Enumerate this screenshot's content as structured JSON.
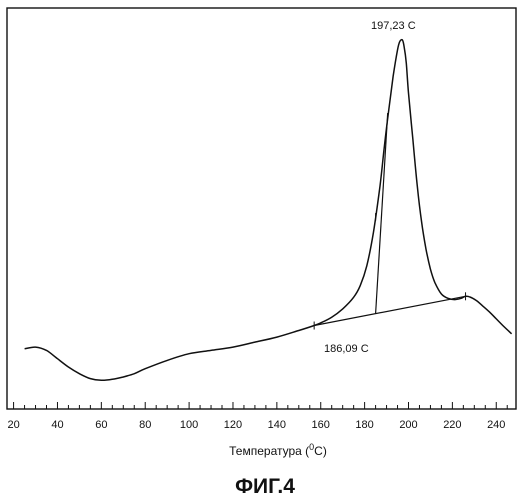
{
  "chart_data": {
    "type": "line",
    "title": "",
    "xlabel": "Температура (⁰C)",
    "xlabel_base": "Температура (",
    "xlabel_sup": "0",
    "xlabel_tail": "C)",
    "ylabel": "",
    "xlim": [
      17,
      249
    ],
    "xticks": [
      20,
      40,
      60,
      80,
      100,
      120,
      140,
      160,
      180,
      200,
      220,
      240
    ],
    "grid": false,
    "series": [
      {
        "x": [
          25,
          30,
          35,
          40,
          45,
          50,
          55,
          60,
          65,
          70,
          75,
          80,
          90,
          100,
          110,
          120,
          130,
          140,
          150,
          157,
          160,
          165,
          170,
          175,
          178,
          181,
          184,
          187,
          189,
          191,
          193,
          195,
          196,
          197.23,
          198,
          199,
          200,
          202,
          204,
          206,
          208,
          210,
          212,
          215,
          218,
          221,
          224,
          226,
          228,
          231,
          234,
          237,
          240,
          243,
          247
        ],
        "y": [
          0.07,
          0.075,
          0.065,
          0.04,
          0.015,
          -0.005,
          -0.02,
          -0.025,
          -0.022,
          -0.015,
          -0.005,
          0.01,
          0.035,
          0.055,
          0.065,
          0.075,
          0.09,
          0.105,
          0.125,
          0.14,
          0.148,
          0.165,
          0.19,
          0.225,
          0.26,
          0.32,
          0.42,
          0.56,
          0.68,
          0.79,
          0.89,
          0.97,
          0.995,
          1.0,
          0.98,
          0.93,
          0.84,
          0.7,
          0.56,
          0.45,
          0.37,
          0.31,
          0.27,
          0.235,
          0.222,
          0.218,
          0.222,
          0.228,
          0.226,
          0.215,
          0.198,
          0.18,
          0.16,
          0.14,
          0.115
        ]
      },
      {
        "x": [
          157,
          226
        ],
        "y": [
          0.14,
          0.228
        ]
      },
      {
        "x": [
          185,
          190.5
        ],
        "y": [
          0.176,
          0.78
        ]
      }
    ],
    "annotations": [
      {
        "text": "197,23 C",
        "x": 197.23,
        "y": 1.0
      },
      {
        "text": "186,09 C",
        "x": 186.09,
        "y": 0.176
      }
    ],
    "caption": "ФИГ.4"
  }
}
